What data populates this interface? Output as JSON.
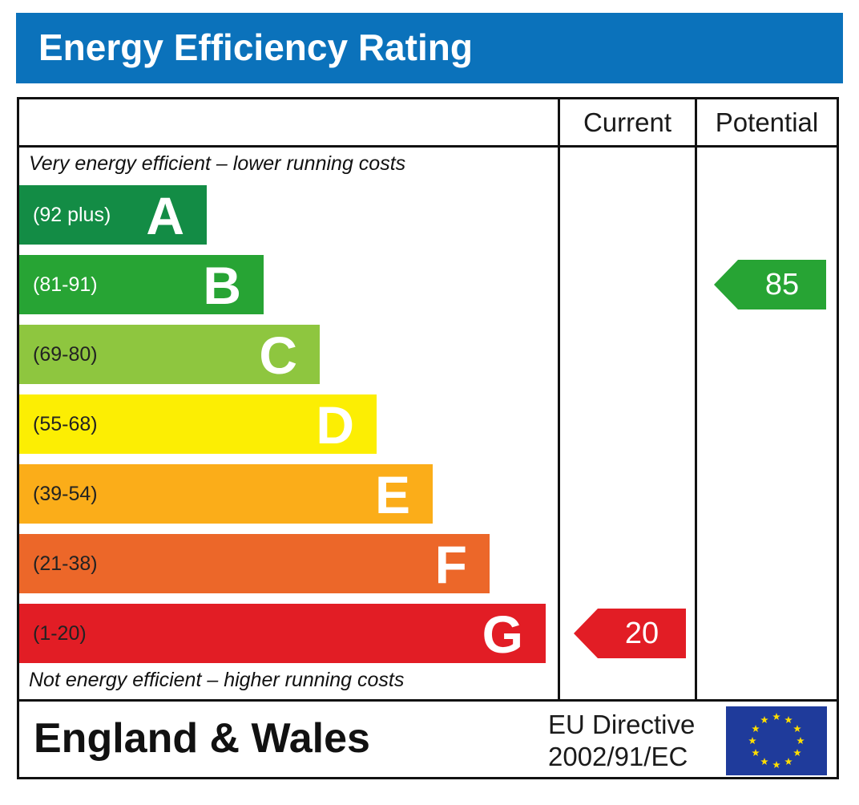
{
  "header": {
    "title": "Energy Efficiency Rating"
  },
  "columns": {
    "current": "Current",
    "potential": "Potential"
  },
  "captions": {
    "top": "Very energy efficient – lower running costs",
    "bottom": "Not energy efficient – higher running costs"
  },
  "chart_data": {
    "type": "bar",
    "title": "Energy Efficiency Rating",
    "categories": [
      "A",
      "B",
      "C",
      "D",
      "E",
      "F",
      "G"
    ],
    "series": [
      {
        "values": [
          1,
          2,
          3,
          4,
          5,
          6,
          7
        ]
      }
    ],
    "bands": [
      {
        "letter": "A",
        "range": "(92 plus)",
        "color": "#138c45"
      },
      {
        "letter": "B",
        "range": "(81-91)",
        "color": "#27a434"
      },
      {
        "letter": "C",
        "range": "(69-80)",
        "color": "#8ec63f"
      },
      {
        "letter": "D",
        "range": "(55-68)",
        "color": "#fcee03"
      },
      {
        "letter": "E",
        "range": "(39-54)",
        "color": "#fbad19"
      },
      {
        "letter": "F",
        "range": "(21-38)",
        "color": "#ec6729"
      },
      {
        "letter": "G",
        "range": "(1-20)",
        "color": "#e21d25"
      }
    ],
    "current": {
      "value": 20,
      "band": "G",
      "color": "#e21d25"
    },
    "potential": {
      "value": 85,
      "band": "B",
      "color": "#27a434"
    }
  },
  "footer": {
    "region": "England & Wales",
    "directive_line1": "EU Directive",
    "directive_line2": "2002/91/EC"
  },
  "colors": {
    "header_bg": "#0b72bb",
    "eu_flag_bg": "#1f3b9b",
    "eu_star": "#ffdd00"
  },
  "icons": {
    "flag": "eu-flag-icon"
  }
}
